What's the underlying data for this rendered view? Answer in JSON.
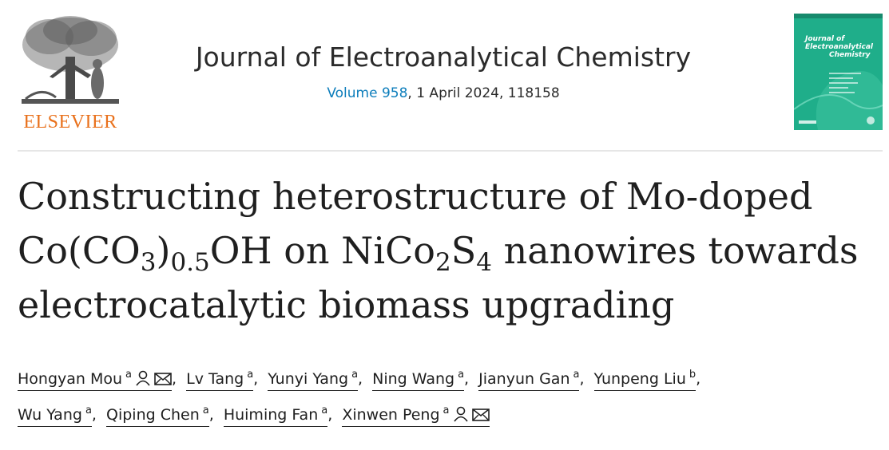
{
  "header": {
    "publisher": "ELSEVIER",
    "journal_title": "Journal of Electroanalytical Chemistry",
    "volume_link": "Volume 958",
    "issue_rest": ", 1 April 2024, 118158",
    "cover_title_line1": "Journal of",
    "cover_title_line2": "Electroanalytical",
    "cover_title_line3": "Chemistry",
    "colors": {
      "publisher_orange": "#e9711c",
      "link_blue": "#0c7dbb",
      "cover_green": "#1fae8a"
    }
  },
  "article": {
    "title_line1": "Constructing heterostructure of Mo-doped",
    "title_p1": "Co(CO",
    "title_sub1": "3",
    "title_p2": ")",
    "title_sub2": "0.5",
    "title_p3": "OH on NiCo",
    "title_sub3": "2",
    "title_p4": "S",
    "title_sub4": "4",
    "title_p5": " nanowires towards",
    "title_line3": "electrocatalytic biomass upgrading"
  },
  "authors": [
    {
      "name": "Hongyan Mou",
      "affil": "a",
      "icons": [
        "person-icon",
        "mail-icon"
      ]
    },
    {
      "name": "Lv Tang",
      "affil": "a",
      "icons": []
    },
    {
      "name": "Yunyi Yang",
      "affil": "a",
      "icons": []
    },
    {
      "name": "Ning Wang",
      "affil": "a",
      "icons": []
    },
    {
      "name": "Jianyun Gan",
      "affil": "a",
      "icons": []
    },
    {
      "name": "Yunpeng Liu",
      "affil": "b",
      "icons": []
    },
    {
      "name": "Wu Yang",
      "affil": "a",
      "icons": []
    },
    {
      "name": "Qiping Chen",
      "affil": "a",
      "icons": []
    },
    {
      "name": "Huiming Fan",
      "affil": "a",
      "icons": []
    },
    {
      "name": "Xinwen Peng",
      "affil": "a",
      "icons": [
        "person-icon",
        "mail-icon"
      ]
    }
  ],
  "separator": ","
}
